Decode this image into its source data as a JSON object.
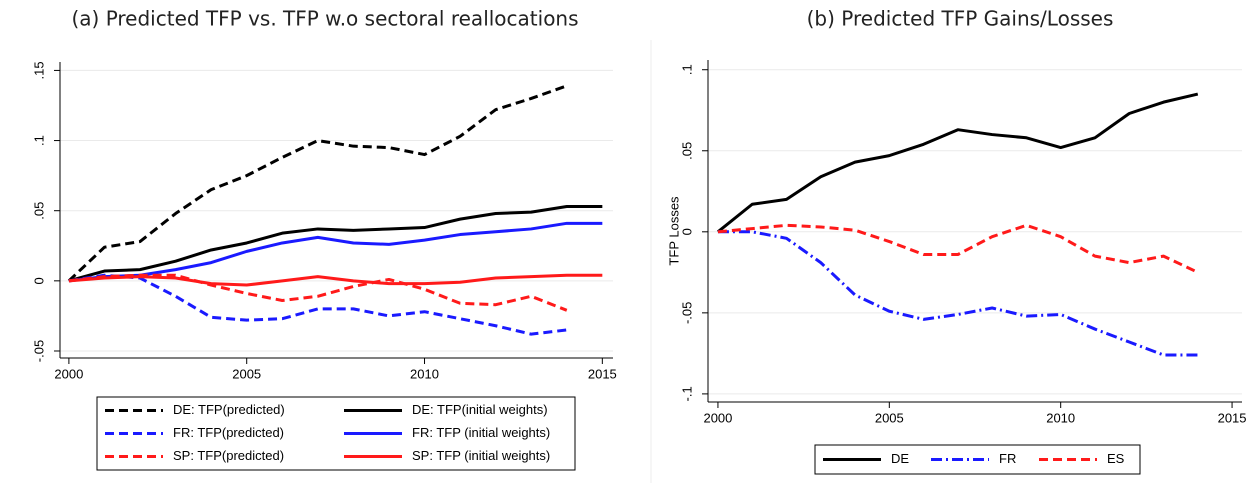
{
  "chart_data": [
    {
      "type": "line",
      "title": "(a) Predicted TFP vs. TFP w.o sectoral reallocations",
      "x": [
        2000,
        2001,
        2002,
        2003,
        2004,
        2005,
        2006,
        2007,
        2008,
        2009,
        2010,
        2011,
        2012,
        2013,
        2014,
        2015
      ],
      "xlim": [
        1999.75,
        2015.3
      ],
      "xticks": [
        2000,
        2005,
        2010,
        2015
      ],
      "ylim": [
        -0.055,
        0.156
      ],
      "yticks": [
        {
          "value": -0.05,
          "label": "-.05"
        },
        0,
        {
          "value": 0.05,
          "label": ".05"
        },
        {
          "value": 0.1,
          "label": ".1"
        },
        {
          "value": 0.15,
          "label": ".15"
        }
      ],
      "grid": true,
      "legend": "bottom",
      "series": [
        {
          "name": "DE: TFP(predicted)",
          "color": "#000000",
          "style": "dashed",
          "values": [
            0,
            0.024,
            0.028,
            0.048,
            0.065,
            0.075,
            0.088,
            0.1,
            0.096,
            0.095,
            0.09,
            0.103,
            0.122,
            0.13,
            0.139,
            null
          ]
        },
        {
          "name": "DE: TFP(initial weights)",
          "color": "#000000",
          "style": "solid",
          "values": [
            0,
            0.007,
            0.008,
            0.014,
            0.022,
            0.027,
            0.034,
            0.037,
            0.036,
            0.037,
            0.038,
            0.044,
            0.048,
            0.049,
            0.053,
            0.053
          ]
        },
        {
          "name": "FR: TFP(predicted)",
          "color": "#1a1aff",
          "style": "dashed",
          "values": [
            0,
            0.004,
            0.002,
            -0.011,
            -0.026,
            -0.028,
            -0.027,
            -0.02,
            -0.02,
            -0.025,
            -0.022,
            -0.027,
            -0.032,
            -0.038,
            -0.035,
            null
          ]
        },
        {
          "name": "FR: TFP (initial weights)",
          "color": "#1a1aff",
          "style": "solid",
          "values": [
            0,
            0.003,
            0.004,
            0.008,
            0.013,
            0.021,
            0.027,
            0.031,
            0.027,
            0.026,
            0.029,
            0.033,
            0.035,
            0.037,
            0.041,
            0.041
          ]
        },
        {
          "name": "SP: TFP(predicted)",
          "color": "#ff1a1a",
          "style": "dashed",
          "values": [
            0,
            0.003,
            0.004,
            0.004,
            -0.003,
            -0.009,
            -0.014,
            -0.011,
            -0.004,
            0.001,
            -0.006,
            -0.016,
            -0.017,
            -0.011,
            -0.021,
            null
          ]
        },
        {
          "name": "SP: TFP (initial weights)",
          "color": "#ff1a1a",
          "style": "solid",
          "values": [
            0,
            0.002,
            0.003,
            0.002,
            -0.002,
            -0.003,
            0,
            0.003,
            0,
            -0.002,
            -0.002,
            -0.001,
            0.002,
            0.003,
            0.004,
            0.004
          ]
        }
      ]
    },
    {
      "type": "line",
      "title": "(b) Predicted TFP Gains/Losses",
      "y_label": "TFP Losses",
      "x": [
        2000,
        2001,
        2002,
        2003,
        2004,
        2005,
        2006,
        2007,
        2008,
        2009,
        2010,
        2011,
        2012,
        2013,
        2014
      ],
      "xlim": [
        1999.71,
        2015.29
      ],
      "xticks": [
        2000,
        2005,
        2010,
        2015
      ],
      "ylim": [
        -0.105,
        0.106
      ],
      "yticks": [
        {
          "value": -0.1,
          "label": "-.1"
        },
        {
          "value": -0.05,
          "label": "-.05"
        },
        0,
        {
          "value": 0.05,
          "label": ".05"
        },
        {
          "value": 0.1,
          "label": ".1"
        }
      ],
      "grid": true,
      "legend": "bottom",
      "series": [
        {
          "name": "DE",
          "color": "#000000",
          "style": "solid",
          "values": [
            0,
            0.017,
            0.02,
            0.034,
            0.043,
            0.047,
            0.054,
            0.063,
            0.06,
            0.058,
            0.052,
            0.058,
            0.073,
            0.08,
            0.085
          ]
        },
        {
          "name": "FR",
          "color": "#1a1aff",
          "style": "dashdot",
          "values": [
            0,
            0,
            -0.004,
            -0.019,
            -0.039,
            -0.049,
            -0.054,
            -0.051,
            -0.047,
            -0.052,
            -0.051,
            -0.06,
            -0.068,
            -0.076,
            -0.076
          ]
        },
        {
          "name": "ES",
          "color": "#ff1a1a",
          "style": "dashed",
          "values": [
            0,
            0.002,
            0.004,
            0.003,
            0.001,
            -0.006,
            -0.014,
            -0.014,
            -0.003,
            0.004,
            -0.003,
            -0.015,
            -0.019,
            -0.015,
            -0.025
          ]
        }
      ]
    }
  ]
}
